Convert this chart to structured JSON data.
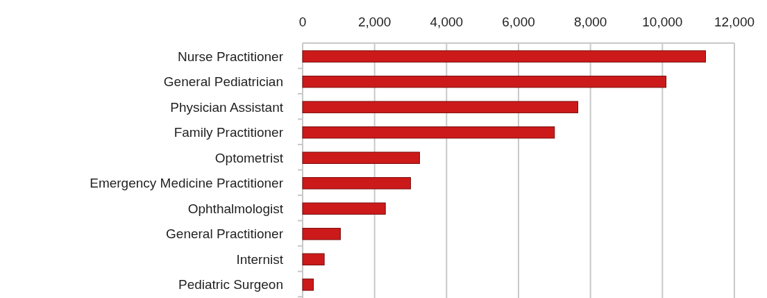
{
  "chart_data": {
    "type": "bar",
    "orientation": "horizontal",
    "categories": [
      "Nurse Practitioner",
      "General Pediatrician",
      "Physician Assistant",
      "Family Practitioner",
      "Optometrist",
      "Emergency Medicine Practitioner",
      "Ophthalmologist",
      "General Practitioner",
      "Internist",
      "Pediatric Surgeon"
    ],
    "values": [
      11200,
      10100,
      7650,
      7000,
      3250,
      3000,
      2300,
      1050,
      600,
      300
    ],
    "color": "#cc1a1a",
    "xlim": [
      0,
      12000
    ],
    "xticks": [
      {
        "value": 0,
        "label": "0"
      },
      {
        "value": 2000,
        "label": "2,000"
      },
      {
        "value": 4000,
        "label": "4,000"
      },
      {
        "value": 6000,
        "label": "6,000"
      },
      {
        "value": 8000,
        "label": "8,000"
      },
      {
        "value": 10000,
        "label": "10,000"
      },
      {
        "value": 12000,
        "label": "12,000"
      }
    ],
    "grid": "x"
  }
}
